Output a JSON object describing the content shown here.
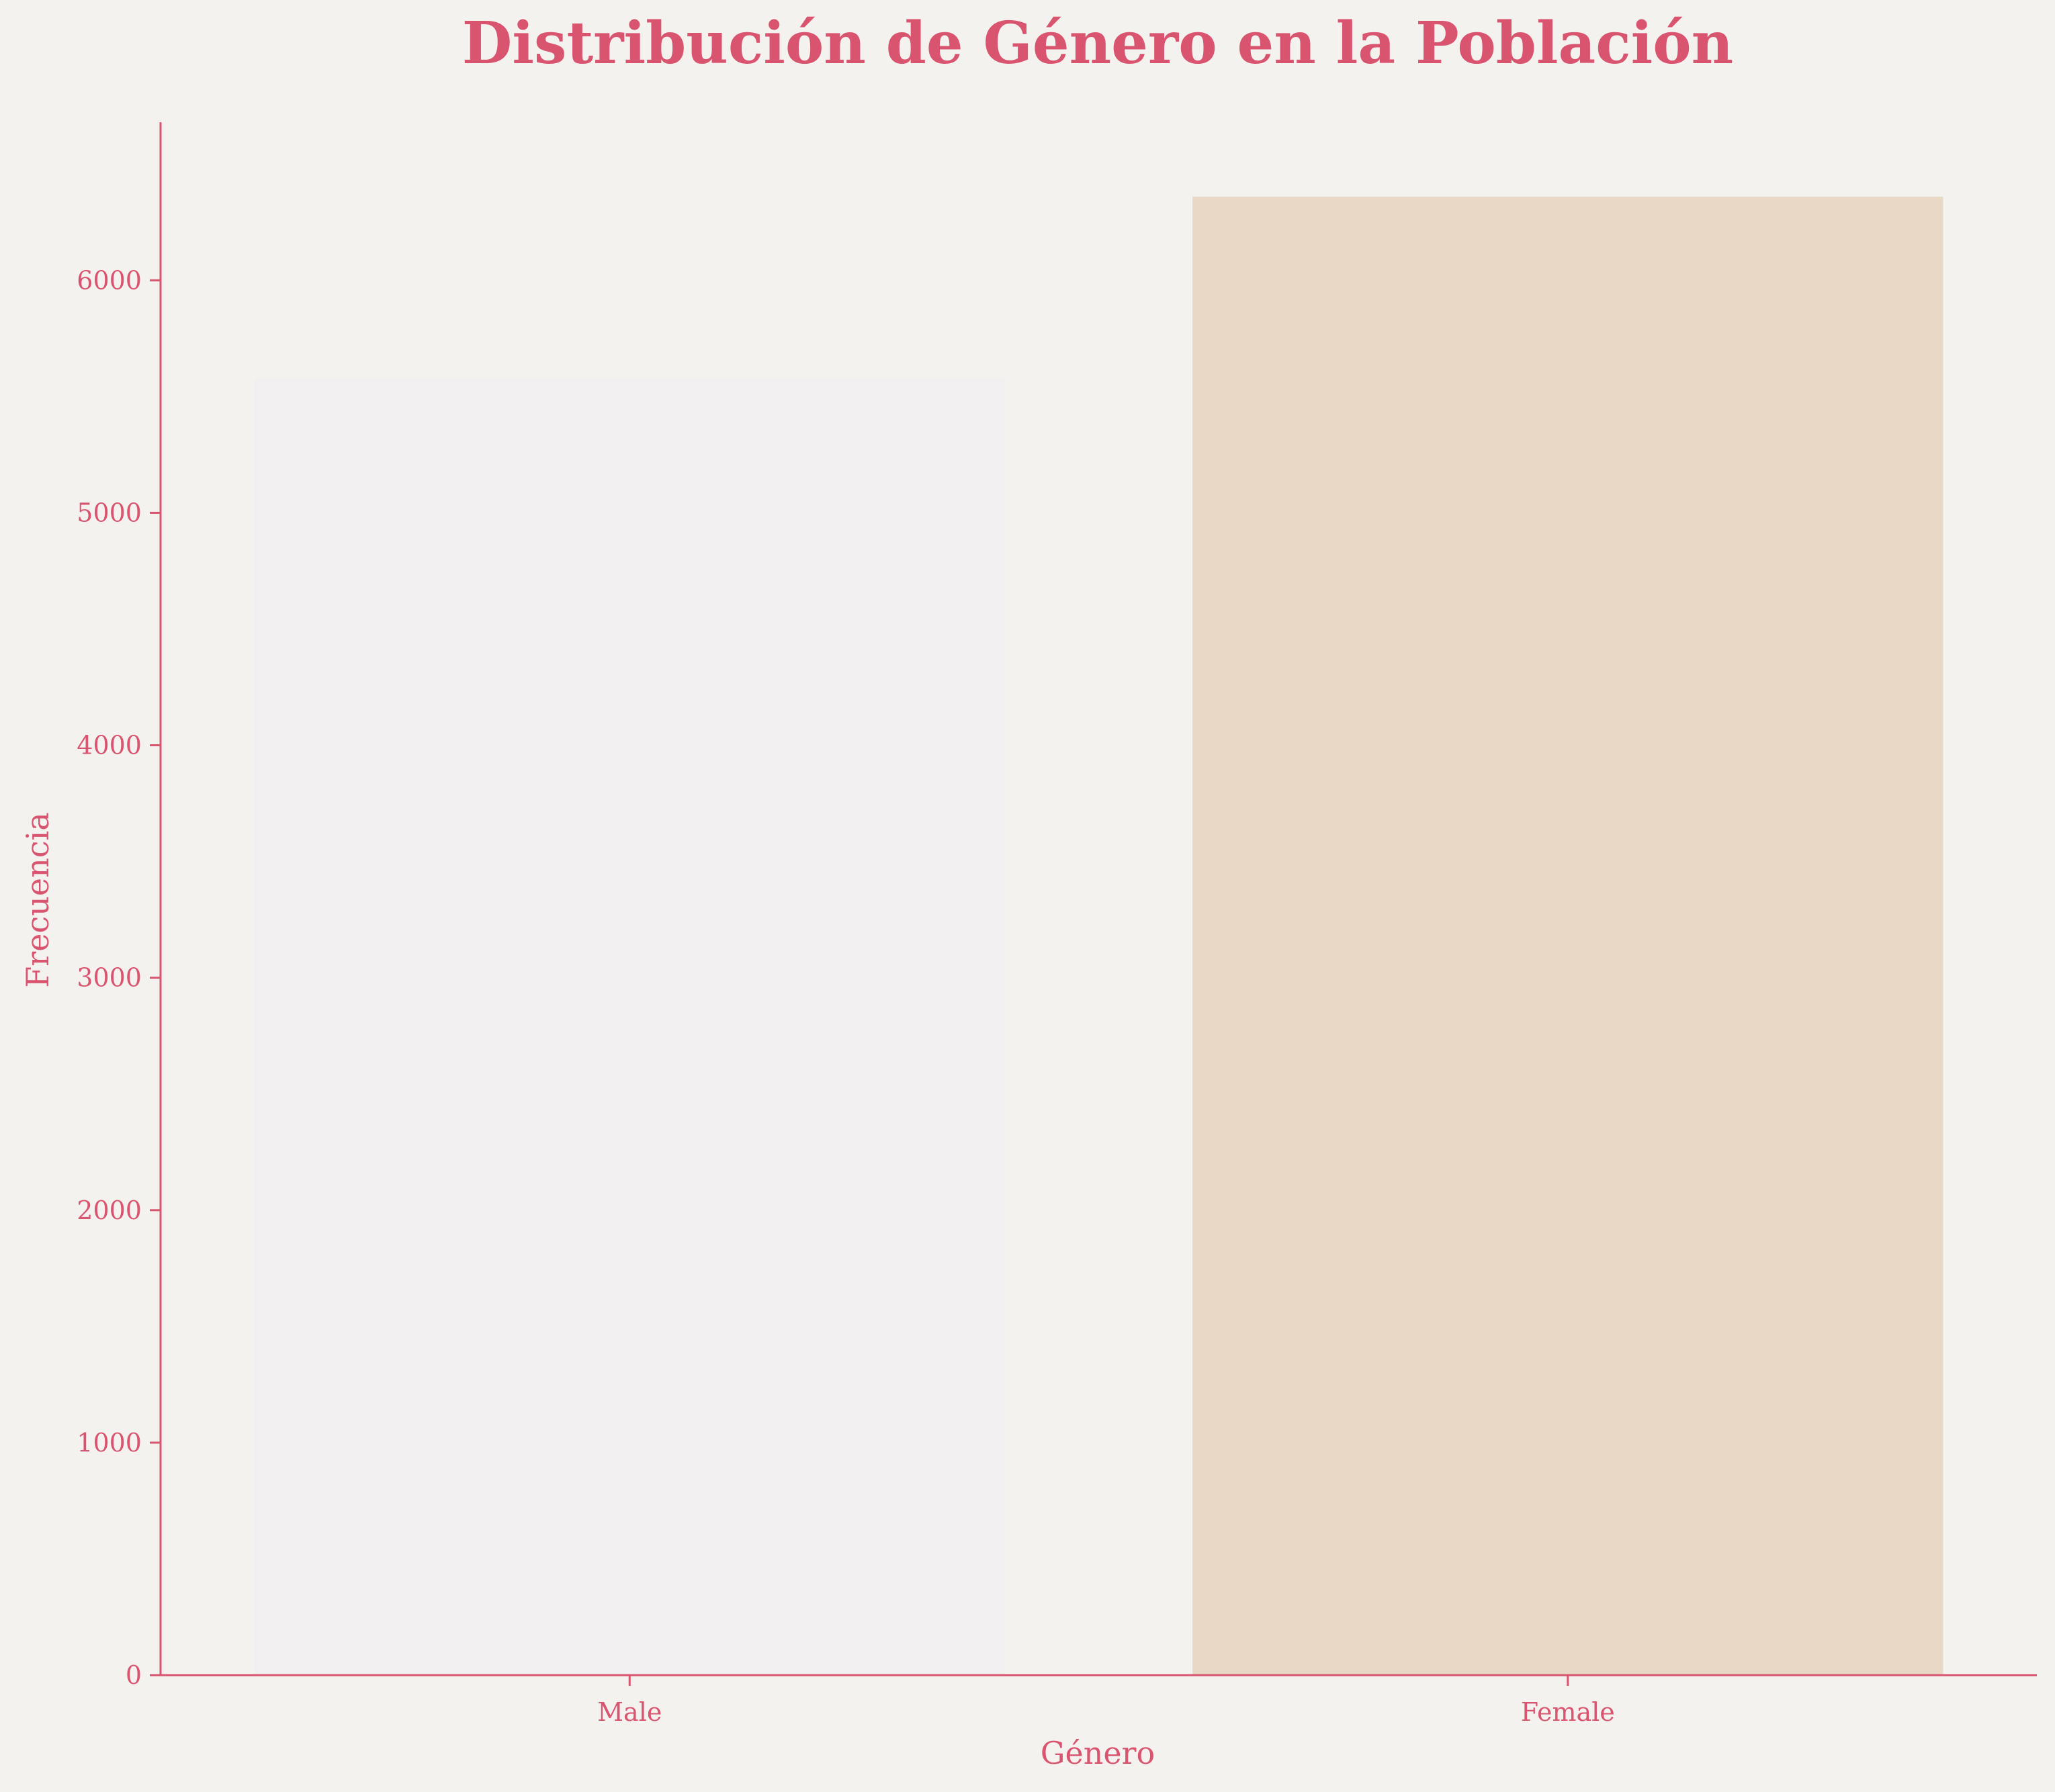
{
  "chart_data": {
    "type": "bar",
    "title": "Distribución de Género en la Población",
    "xlabel": "Género",
    "ylabel": "Frecuencia",
    "categories": [
      "Male",
      "Female"
    ],
    "values": [
      5580,
      6360
    ],
    "ylim": [
      0,
      6680
    ],
    "yticks": [
      0,
      1000,
      2000,
      3000,
      4000,
      5000,
      6000
    ],
    "grid": false,
    "legend": "none"
  },
  "colors": {
    "background": "#f4f2ef",
    "text": "#d9546f",
    "axis": "#d9546f",
    "bars": [
      "#f2eff0",
      "#e9d8c6"
    ]
  }
}
